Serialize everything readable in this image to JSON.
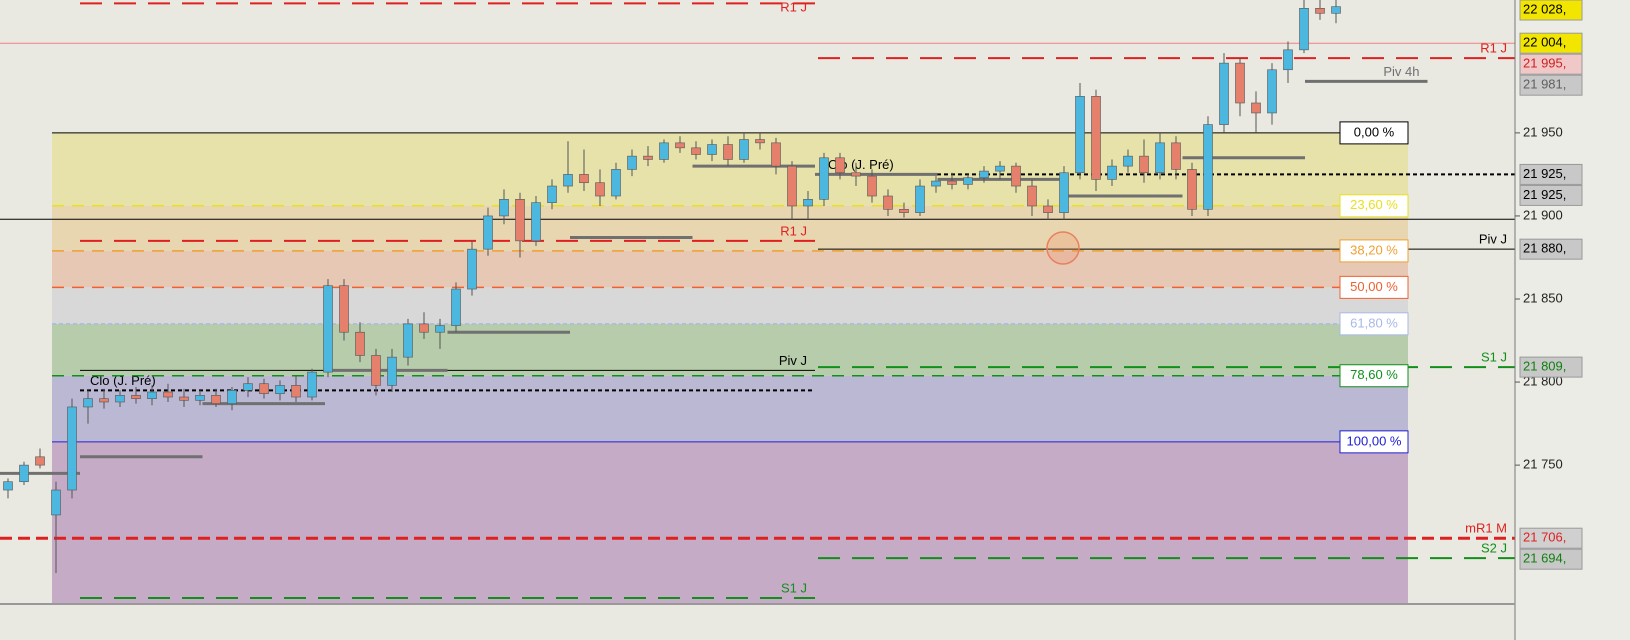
{
  "chart_data": {
    "type": "candlestick",
    "ylim": [
      21670,
      22030
    ],
    "yticks": [
      {
        "value": 21950,
        "label": "21 950"
      },
      {
        "value": 21900,
        "label": "21 900"
      },
      {
        "value": 21850,
        "label": "21 850"
      },
      {
        "value": 21800,
        "label": "21 800"
      },
      {
        "value": 21750,
        "label": "21 750"
      }
    ],
    "up_color": "#4cb8e0",
    "down_color": "#e4806c",
    "candles": [
      [
        21735,
        21742,
        21730,
        21740
      ],
      [
        21740,
        21752,
        21738,
        21750
      ],
      [
        21755,
        21760,
        21748,
        21750
      ],
      [
        21720,
        21740,
        21685,
        21735
      ],
      [
        21735,
        21790,
        21730,
        21785
      ],
      [
        21785,
        21795,
        21775,
        21790
      ],
      [
        21790,
        21796,
        21784,
        21788
      ],
      [
        21788,
        21795,
        21785,
        21792
      ],
      [
        21792,
        21797,
        21787,
        21790
      ],
      [
        21790,
        21798,
        21786,
        21794
      ],
      [
        21794,
        21799,
        21788,
        21791
      ],
      [
        21791,
        21796,
        21785,
        21789
      ],
      [
        21789,
        21795,
        21786,
        21792
      ],
      [
        21792,
        21796,
        21785,
        21787
      ],
      [
        21787,
        21797,
        21783,
        21795
      ],
      [
        21795,
        21803,
        21791,
        21799
      ],
      [
        21799,
        21802,
        21790,
        21793
      ],
      [
        21793,
        21801,
        21789,
        21798
      ],
      [
        21798,
        21804,
        21788,
        21791
      ],
      [
        21791,
        21808,
        21789,
        21806
      ],
      [
        21806,
        21862,
        21803,
        21858
      ],
      [
        21858,
        21862,
        21825,
        21830
      ],
      [
        21830,
        21836,
        21812,
        21816
      ],
      [
        21816,
        21820,
        21792,
        21798
      ],
      [
        21798,
        21820,
        21794,
        21815
      ],
      [
        21815,
        21838,
        21810,
        21835
      ],
      [
        21835,
        21842,
        21826,
        21830
      ],
      [
        21830,
        21838,
        21820,
        21834
      ],
      [
        21834,
        21860,
        21830,
        21856
      ],
      [
        21856,
        21885,
        21852,
        21880
      ],
      [
        21880,
        21905,
        21876,
        21900
      ],
      [
        21900,
        21916,
        21895,
        21910
      ],
      [
        21910,
        21914,
        21875,
        21885
      ],
      [
        21885,
        21912,
        21882,
        21908
      ],
      [
        21908,
        21922,
        21904,
        21918
      ],
      [
        21918,
        21945,
        21914,
        21925
      ],
      [
        21925,
        21940,
        21915,
        21920
      ],
      [
        21920,
        21928,
        21906,
        21912
      ],
      [
        21912,
        21932,
        21910,
        21928
      ],
      [
        21928,
        21940,
        21924,
        21936
      ],
      [
        21936,
        21942,
        21930,
        21934
      ],
      [
        21934,
        21946,
        21932,
        21944
      ],
      [
        21944,
        21948,
        21938,
        21941
      ],
      [
        21941,
        21945,
        21934,
        21937
      ],
      [
        21937,
        21946,
        21933,
        21943
      ],
      [
        21943,
        21948,
        21930,
        21934
      ],
      [
        21934,
        21950,
        21932,
        21946
      ],
      [
        21946,
        21950,
        21940,
        21944
      ],
      [
        21944,
        21947,
        21925,
        21930
      ],
      [
        21930,
        21933,
        21898,
        21906
      ],
      [
        21906,
        21915,
        21898,
        21910
      ],
      [
        21910,
        21938,
        21906,
        21935
      ],
      [
        21935,
        21938,
        21922,
        21926
      ],
      [
        21926,
        21932,
        21918,
        21924
      ],
      [
        21924,
        21928,
        21908,
        21912
      ],
      [
        21912,
        21916,
        21900,
        21904
      ],
      [
        21904,
        21908,
        21899,
        21902
      ],
      [
        21902,
        21922,
        21900,
        21918
      ],
      [
        21918,
        21924,
        21914,
        21921
      ],
      [
        21921,
        21926,
        21916,
        21919
      ],
      [
        21919,
        21925,
        21916,
        21923
      ],
      [
        21923,
        21930,
        21920,
        21927
      ],
      [
        21927,
        21933,
        21922,
        21930
      ],
      [
        21930,
        21932,
        21914,
        21918
      ],
      [
        21918,
        21922,
        21900,
        21906
      ],
      [
        21906,
        21910,
        21898,
        21902
      ],
      [
        21902,
        21930,
        21898,
        21926
      ],
      [
        21926,
        21980,
        21922,
        21972
      ],
      [
        21972,
        21976,
        21915,
        21922
      ],
      [
        21922,
        21934,
        21918,
        21930
      ],
      [
        21930,
        21940,
        21926,
        21936
      ],
      [
        21936,
        21946,
        21920,
        21926
      ],
      [
        21926,
        21950,
        21922,
        21944
      ],
      [
        21944,
        21948,
        21922,
        21928
      ],
      [
        21928,
        21932,
        21900,
        21904
      ],
      [
        21904,
        21960,
        21900,
        21955
      ],
      [
        21955,
        21998,
        21950,
        21992
      ],
      [
        21992,
        21995,
        21960,
        21968
      ],
      [
        21968,
        21975,
        21950,
        21962
      ],
      [
        21962,
        21992,
        21955,
        21988
      ],
      [
        21988,
        22005,
        21980,
        22000
      ],
      [
        22000,
        22032,
        21998,
        22025
      ],
      [
        22025,
        22030,
        22018,
        22022
      ],
      [
        22022,
        22030,
        22016,
        22026
      ]
    ],
    "fibonacci": {
      "high": 21950,
      "low": 21764,
      "levels": [
        {
          "value": 0,
          "label": "0,00 %",
          "color": "#000000",
          "style": "solid"
        },
        {
          "value": 23.6,
          "label": "23,60 %",
          "color": "#e8e020",
          "style": "dashed"
        },
        {
          "value": 38.2,
          "label": "38,20 %",
          "color": "#f0a030",
          "style": "dashed"
        },
        {
          "value": 50,
          "label": "50,00 %",
          "color": "#f06030",
          "style": "dashed"
        },
        {
          "value": 61.8,
          "label": "61,80 %",
          "color": "#a8b8e8",
          "style": "dotted"
        },
        {
          "value": 78.6,
          "label": "78,60 %",
          "color": "#10901a",
          "style": "dashed"
        },
        {
          "value": 100,
          "label": "100,00 %",
          "color": "#2020d0",
          "style": "solid"
        }
      ],
      "band_colors": [
        "#e6e2aa",
        "#e8d6b0",
        "#e6c8b4",
        "#d8d8d8",
        "#b6ccaa",
        "#bab8d2"
      ],
      "extension_color": "#c6abc6"
    },
    "levels": [
      {
        "name": "R1 J",
        "value": 22028,
        "color": "#e02020",
        "style": "dashed",
        "span": "left",
        "label_position": "end"
      },
      {
        "value": 22004,
        "color": "#f08080",
        "style": "solid",
        "span": "full"
      },
      {
        "name": "R1 J",
        "value": 21995,
        "color": "#e02020",
        "style": "dashed",
        "span": "right",
        "label_position": "end"
      },
      {
        "name": "Clo (J. Pré)",
        "value": 21925,
        "color": "#000000",
        "style": "dotted",
        "span": "right",
        "label_position": "start"
      },
      {
        "value": 21898,
        "color": "#000000",
        "style": "solid",
        "span": "full"
      },
      {
        "name": "R1 J",
        "value": 21885,
        "color": "#e02020",
        "style": "dashed",
        "span": "left",
        "label_position": "end"
      },
      {
        "name": "Piv J",
        "value": 21880,
        "color": "#000000",
        "style": "solid",
        "span": "right",
        "label_position": "end"
      },
      {
        "name": "S1 J",
        "value": 21809,
        "color": "#10901a",
        "style": "dashed",
        "span": "right",
        "label_position": "end"
      },
      {
        "name": "Piv J",
        "value": 21807,
        "color": "#000000",
        "style": "solid",
        "span": "left",
        "label_position": "end"
      },
      {
        "name": "Clo (J. Pré)",
        "value": 21795,
        "color": "#000000",
        "style": "dotted",
        "span": "left",
        "label_position": "start"
      },
      {
        "name": "mR1 M",
        "value": 21706,
        "color": "#e02020",
        "style": "thick",
        "span": "full",
        "label_position": "end"
      },
      {
        "name": "S2 J",
        "value": 21694,
        "color": "#10901a",
        "style": "dashed",
        "span": "right",
        "label_position": "end"
      },
      {
        "name": "S1 J",
        "value": 21670,
        "color": "#10901a",
        "style": "dashed",
        "span": "left",
        "label_position": "end"
      }
    ],
    "pivot_segments": {
      "name": "Piv 4h",
      "color": "#707070",
      "values": [
        21745,
        21755,
        21787,
        21807,
        21830,
        21887,
        21930,
        21925,
        21922,
        21912,
        21935,
        21981
      ]
    },
    "price_labels": [
      {
        "value": 22028,
        "label": "22 028,",
        "bg": "#f2e600",
        "color": "#000000"
      },
      {
        "value": 22004,
        "label": "22 004,",
        "bg": "#f2e600",
        "color": "#000000"
      },
      {
        "value": 21995,
        "label": "21 995,",
        "bg": "#f0c8c8",
        "color": "#d02020"
      },
      {
        "value": 21981,
        "label": "21 981,",
        "bg": "#c8c8c8",
        "color": "#606060"
      },
      {
        "value": 21925,
        "label": "21 925,",
        "bg": "#c8c8c8",
        "color": "#000000"
      },
      {
        "value": 21925,
        "label": "21 925,",
        "bg": "#c8c8c8",
        "color": "#000000"
      },
      {
        "value": 21880,
        "label": "21 880,",
        "bg": "#c8c8c8",
        "color": "#000000"
      },
      {
        "value": 21809,
        "label": "21 809,",
        "bg": "#c8c8c8",
        "color": "#108010"
      },
      {
        "value": 21706,
        "label": "21 706,",
        "bg": "#d0d0d0",
        "color": "#e02020"
      },
      {
        "value": 21694,
        "label": "21 694,",
        "bg": "#c8c8c8",
        "color": "#108010"
      }
    ]
  }
}
